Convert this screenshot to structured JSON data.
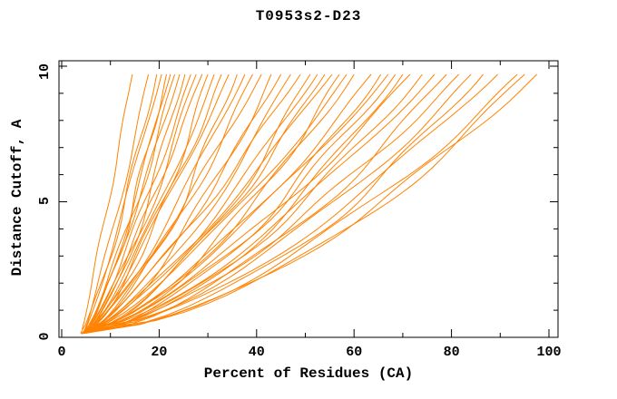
{
  "figure": {
    "background": "#ffffff"
  },
  "chart_data": {
    "type": "line",
    "title": "T0953s2-D23",
    "xlabel": "Percent of Residues (CA)",
    "ylabel": "Distance Cutoff, A",
    "xlim": [
      0,
      100
    ],
    "ylim": [
      0,
      10
    ],
    "x_major_ticks": [
      0,
      20,
      40,
      60,
      80,
      100
    ],
    "x_minor_ticks": [
      10,
      30,
      50,
      70,
      90
    ],
    "y_major_ticks": [
      0,
      5,
      10
    ],
    "y_minor_ticks": [
      1,
      2,
      3,
      4,
      6,
      7,
      8,
      9
    ],
    "grid": false,
    "legend": "none",
    "axis_color": "#000000",
    "line_color": "#ff8200",
    "curve_top_y": 9.7,
    "series_note": "~47 unlabeled model curves; each estimated as [x_start_pct, x_top_pct, shape_k, wiggle_amp_pct, wiggle_freq, wiggle_phase, y_start_A]",
    "series_format": [
      "x_start_pct",
      "x_top_pct",
      "shape_k",
      "wiggle_amp_pct",
      "wiggle_freq",
      "wiggle_phase",
      "y_start_A"
    ],
    "series": [
      [
        4.2,
        14.5,
        0.95,
        0.4,
        1.2,
        1.0,
        0.3
      ],
      [
        4.6,
        17.8,
        0.88,
        0.5,
        0.9,
        2.5,
        0.22
      ],
      [
        3.9,
        19.5,
        0.8,
        0.7,
        1.1,
        4.0,
        0.15
      ],
      [
        5.0,
        20.5,
        0.92,
        0.5,
        0.7,
        0.5,
        0.35
      ],
      [
        4.4,
        21.5,
        0.72,
        0.8,
        1.3,
        3.2,
        0.18
      ],
      [
        5.4,
        22.3,
        0.85,
        0.6,
        0.8,
        5.1,
        0.28
      ],
      [
        4.1,
        23.2,
        0.78,
        0.9,
        1.0,
        1.8,
        0.12
      ],
      [
        5.8,
        24.2,
        0.9,
        0.5,
        1.2,
        2.9,
        0.33
      ],
      [
        4.8,
        25.3,
        0.7,
        1.0,
        0.9,
        4.6,
        0.2
      ],
      [
        5.2,
        26.5,
        0.83,
        0.7,
        1.1,
        0.2,
        0.25
      ],
      [
        4.3,
        27.6,
        0.75,
        1.1,
        0.8,
        3.7,
        0.15
      ],
      [
        6.0,
        28.8,
        0.88,
        0.6,
        1.3,
        5.6,
        0.3
      ],
      [
        4.7,
        30.0,
        0.68,
        1.2,
        1.0,
        1.3,
        0.18
      ],
      [
        5.5,
        31.3,
        0.8,
        0.8,
        0.7,
        2.2,
        0.26
      ],
      [
        4.0,
        32.8,
        0.73,
        1.0,
        1.2,
        4.9,
        0.14
      ],
      [
        5.9,
        34.3,
        0.86,
        0.7,
        0.9,
        0.8,
        0.31
      ],
      [
        4.5,
        36.0,
        0.66,
        1.3,
        1.1,
        3.0,
        0.17
      ],
      [
        5.1,
        37.6,
        0.79,
        0.9,
        0.8,
        5.9,
        0.23
      ],
      [
        4.9,
        39.2,
        0.72,
        1.1,
        1.0,
        1.6,
        0.2
      ],
      [
        5.6,
        41.0,
        0.84,
        0.8,
        1.2,
        3.4,
        0.28
      ],
      [
        4.2,
        43.0,
        0.65,
        1.4,
        0.9,
        0.4,
        0.13
      ],
      [
        6.2,
        45.0,
        0.77,
        1.0,
        1.1,
        2.7,
        0.32
      ],
      [
        4.6,
        47.0,
        0.7,
        1.2,
        0.7,
        4.3,
        0.16
      ],
      [
        5.3,
        49.0,
        0.82,
        0.9,
        1.3,
        0.9,
        0.24
      ],
      [
        4.8,
        51.0,
        0.63,
        1.5,
        1.0,
        2.1,
        0.19
      ],
      [
        5.7,
        52.5,
        0.75,
        1.1,
        0.8,
        5.3,
        0.27
      ],
      [
        4.4,
        54.0,
        0.68,
        1.3,
        1.2,
        1.1,
        0.15
      ],
      [
        6.1,
        55.5,
        0.8,
        0.9,
        0.9,
        3.8,
        0.3
      ],
      [
        4.9,
        57.0,
        0.62,
        1.6,
        1.1,
        0.1,
        0.21
      ],
      [
        5.4,
        58.5,
        0.74,
        1.2,
        0.7,
        2.4,
        0.25
      ],
      [
        4.5,
        60.0,
        0.67,
        1.4,
        1.0,
        4.7,
        0.17
      ],
      [
        5.8,
        63.5,
        0.7,
        1.2,
        0.9,
        1.9,
        0.28
      ],
      [
        4.7,
        65.5,
        0.62,
        1.6,
        1.1,
        3.5,
        0.14
      ],
      [
        5.2,
        67.0,
        0.73,
        1.3,
        0.8,
        0.6,
        0.24
      ],
      [
        6.0,
        68.5,
        0.66,
        1.5,
        1.2,
        2.8,
        0.31
      ],
      [
        4.4,
        70.0,
        0.6,
        1.7,
        0.9,
        5.0,
        0.16
      ],
      [
        5.5,
        71.5,
        0.71,
        1.3,
        1.0,
        1.4,
        0.26
      ],
      [
        4.8,
        74.0,
        0.64,
        1.6,
        1.1,
        3.9,
        0.19
      ],
      [
        5.9,
        76.5,
        0.69,
        1.4,
        0.8,
        0.3,
        0.29
      ],
      [
        4.6,
        79.0,
        0.61,
        1.8,
        1.0,
        2.3,
        0.15
      ],
      [
        5.3,
        81.5,
        0.67,
        1.5,
        1.2,
        4.5,
        0.22
      ],
      [
        6.2,
        84.0,
        0.63,
        1.7,
        0.9,
        1.2,
        0.33
      ],
      [
        4.9,
        86.5,
        0.58,
        1.9,
        1.1,
        3.1,
        0.18
      ],
      [
        5.6,
        89.5,
        0.65,
        1.6,
        0.8,
        5.4,
        0.25
      ],
      [
        5.0,
        93.5,
        0.6,
        1.8,
        1.0,
        0.7,
        0.2
      ],
      [
        6.3,
        95.0,
        0.57,
        2.0,
        0.9,
        2.6,
        0.3
      ],
      [
        5.1,
        97.5,
        0.62,
        1.7,
        1.1,
        4.2,
        0.16
      ]
    ]
  }
}
